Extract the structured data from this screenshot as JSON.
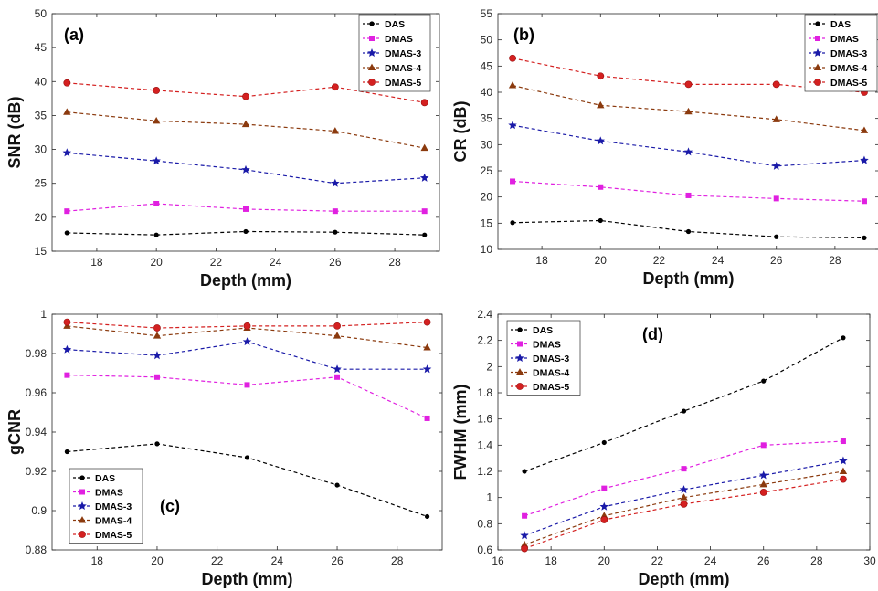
{
  "colors": {
    "DAS": "#000000",
    "DMAS": "#e020e0",
    "DMAS-3": "#1a1aa8",
    "DMAS-4": "#8b3a0e",
    "DMAS-5": "#d42020"
  },
  "chart_data": [
    {
      "type": "line",
      "panel_label": "(a)",
      "xlabel": "Depth (mm)",
      "ylabel": "SNR (dB)",
      "xlim": [
        16.5,
        29.5
      ],
      "ylim": [
        15,
        50
      ],
      "xticks": [
        18,
        20,
        22,
        24,
        26,
        28
      ],
      "yticks": [
        15,
        20,
        25,
        30,
        35,
        40,
        45,
        50
      ],
      "legend": "top-right",
      "x": [
        17,
        20,
        23,
        26,
        29
      ],
      "series": [
        {
          "name": "DAS",
          "values": [
            17.7,
            17.4,
            17.9,
            17.8,
            17.4
          ],
          "marker": "circle"
        },
        {
          "name": "DMAS",
          "values": [
            20.9,
            22.0,
            21.2,
            20.9,
            20.9
          ],
          "marker": "square"
        },
        {
          "name": "DMAS-3",
          "values": [
            29.5,
            28.3,
            27.0,
            25.0,
            25.8
          ],
          "marker": "star"
        },
        {
          "name": "DMAS-4",
          "values": [
            35.5,
            34.2,
            33.7,
            32.7,
            30.2
          ],
          "marker": "triangle"
        },
        {
          "name": "DMAS-5",
          "values": [
            39.8,
            38.7,
            37.8,
            39.2,
            36.9
          ],
          "marker": "circle-filled"
        }
      ]
    },
    {
      "type": "line",
      "panel_label": "(b)",
      "xlabel": "Depth (mm)",
      "ylabel": "CR (dB)",
      "xlim": [
        16.5,
        29.5
      ],
      "ylim": [
        10,
        55
      ],
      "xticks": [
        18,
        20,
        22,
        24,
        26,
        28
      ],
      "yticks": [
        10,
        15,
        20,
        25,
        30,
        35,
        40,
        45,
        50,
        55
      ],
      "legend": "top-right",
      "x": [
        17,
        20,
        23,
        26,
        29
      ],
      "series": [
        {
          "name": "DAS",
          "values": [
            15.1,
            15.5,
            13.4,
            12.4,
            12.2
          ],
          "marker": "circle"
        },
        {
          "name": "DMAS",
          "values": [
            23.0,
            21.9,
            20.3,
            19.7,
            19.2
          ],
          "marker": "square"
        },
        {
          "name": "DMAS-3",
          "values": [
            33.7,
            30.7,
            28.6,
            25.9,
            27.0
          ],
          "marker": "star"
        },
        {
          "name": "DMAS-4",
          "values": [
            41.3,
            37.5,
            36.3,
            34.8,
            32.7
          ],
          "marker": "triangle"
        },
        {
          "name": "DMAS-5",
          "values": [
            46.5,
            43.1,
            41.5,
            41.5,
            40.0
          ],
          "marker": "circle-filled"
        }
      ]
    },
    {
      "type": "line",
      "panel_label": "(c)",
      "xlabel": "Depth (mm)",
      "ylabel": "gCNR",
      "xlim": [
        16.5,
        29.5
      ],
      "ylim": [
        0.88,
        1.0
      ],
      "xticks": [
        18,
        20,
        22,
        24,
        26,
        28
      ],
      "yticks": [
        0.88,
        0.9,
        0.92,
        0.94,
        0.96,
        0.98,
        1.0
      ],
      "ytick_labels": [
        "0.88",
        "0.9",
        "0.92",
        "0.94",
        "0.96",
        "0.98",
        "1"
      ],
      "legend": "bottom-left",
      "x": [
        17,
        20,
        23,
        26,
        29
      ],
      "series": [
        {
          "name": "DAS",
          "values": [
            0.93,
            0.934,
            0.927,
            0.913,
            0.897
          ],
          "marker": "circle"
        },
        {
          "name": "DMAS",
          "values": [
            0.969,
            0.968,
            0.964,
            0.968,
            0.947
          ],
          "marker": "square"
        },
        {
          "name": "DMAS-3",
          "values": [
            0.982,
            0.979,
            0.986,
            0.972,
            0.972
          ],
          "marker": "star"
        },
        {
          "name": "DMAS-4",
          "values": [
            0.994,
            0.989,
            0.993,
            0.989,
            0.983
          ],
          "marker": "triangle"
        },
        {
          "name": "DMAS-5",
          "values": [
            0.996,
            0.993,
            0.994,
            0.994,
            0.996
          ],
          "marker": "circle-filled"
        }
      ]
    },
    {
      "type": "line",
      "panel_label": "(d)",
      "xlabel": "Depth (mm)",
      "ylabel": "FWHM (mm)",
      "xlim": [
        16,
        30
      ],
      "ylim": [
        0.6,
        2.4
      ],
      "xticks": [
        16,
        18,
        20,
        22,
        24,
        26,
        28,
        30
      ],
      "yticks": [
        0.6,
        0.8,
        1.0,
        1.2,
        1.4,
        1.6,
        1.8,
        2.0,
        2.2,
        2.4
      ],
      "ytick_labels": [
        "0.6",
        "0.8",
        "1",
        "1.2",
        "1.4",
        "1.6",
        "1.8",
        "2",
        "2.2",
        "2.4"
      ],
      "legend": "top-left",
      "x": [
        17,
        20,
        23,
        26,
        29
      ],
      "series": [
        {
          "name": "DAS",
          "values": [
            1.2,
            1.42,
            1.66,
            1.89,
            2.22
          ],
          "marker": "circle"
        },
        {
          "name": "DMAS",
          "values": [
            0.86,
            1.07,
            1.22,
            1.4,
            1.43
          ],
          "marker": "square"
        },
        {
          "name": "DMAS-3",
          "values": [
            0.71,
            0.93,
            1.06,
            1.17,
            1.28
          ],
          "marker": "star"
        },
        {
          "name": "DMAS-4",
          "values": [
            0.64,
            0.86,
            1.0,
            1.1,
            1.2
          ],
          "marker": "triangle"
        },
        {
          "name": "DMAS-5",
          "values": [
            0.61,
            0.83,
            0.95,
            1.04,
            1.14
          ],
          "marker": "circle-filled"
        }
      ]
    }
  ]
}
